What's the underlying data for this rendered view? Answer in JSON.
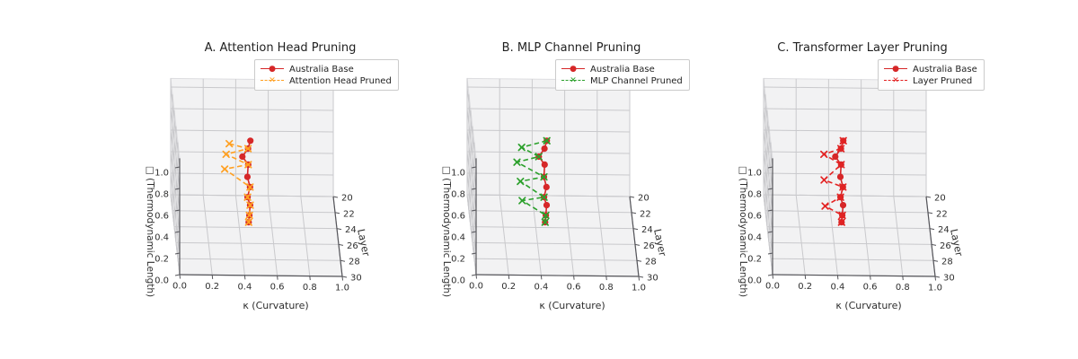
{
  "figure": {
    "background": "#ffffff",
    "pane_color": "#f2f2f3",
    "pane_edge_color": "#dddde0",
    "grid_color": "#c9c9cc",
    "axis_line_color": "#55555a",
    "tick_text_color": "#2e2e2e",
    "title_color": "#1f1f1f"
  },
  "chart_data": [
    {
      "type": "line3d",
      "title": "A. Attention Head Pruning",
      "xlabel": "κ (Curvature)",
      "ylabel": "Layer",
      "zlabel": "□ (Thermodynamic Length)",
      "xlim": [
        0,
        1
      ],
      "ylim": [
        20,
        30
      ],
      "zlim": [
        0,
        1.05
      ],
      "xticks": [
        "0.0",
        "0.2",
        "0.4",
        "0.6",
        "0.8",
        "1.0"
      ],
      "yticks": [
        "20",
        "22",
        "24",
        "26",
        "28",
        "30"
      ],
      "zticks": [
        "0.0",
        "0.2",
        "0.4",
        "0.6",
        "0.8",
        "1.0"
      ],
      "grid": true,
      "legend_position": "upper center-right",
      "series": [
        {
          "name": "Australia Base",
          "color": "#d62728",
          "marker": "circle",
          "line": "solid",
          "layers": [
            20,
            21,
            22,
            23,
            24,
            25,
            26,
            27,
            28,
            29
          ],
          "kappa": [
            0.49,
            0.47,
            0.43,
            0.46,
            0.45,
            0.46,
            0.44,
            0.45,
            0.44,
            0.43
          ],
          "thermo_length": [
            0.51,
            0.51,
            0.51,
            0.51,
            0.47,
            0.45,
            0.43,
            0.43,
            0.41,
            0.42
          ]
        },
        {
          "name": "Attention Head Pruned",
          "color": "#ffa022",
          "marker": "x",
          "line": "dashed",
          "layers": [
            20,
            21,
            22,
            23,
            24,
            25,
            26,
            27,
            28,
            29
          ],
          "kappa": [
            0.36,
            0.47,
            0.33,
            0.46,
            0.31,
            0.46,
            0.44,
            0.45,
            0.44,
            0.43
          ],
          "thermo_length": [
            0.48,
            0.51,
            0.53,
            0.51,
            0.54,
            0.45,
            0.43,
            0.43,
            0.41,
            0.42
          ]
        }
      ]
    },
    {
      "type": "line3d",
      "title": "B. MLP Channel Pruning",
      "xlabel": "κ (Curvature)",
      "ylabel": "Layer",
      "zlabel": "□ (Thermodynamic Length)",
      "xlim": [
        0,
        1
      ],
      "ylim": [
        20,
        30
      ],
      "zlim": [
        0,
        1.05
      ],
      "xticks": [
        "0.0",
        "0.2",
        "0.4",
        "0.6",
        "0.8",
        "1.0"
      ],
      "yticks": [
        "20",
        "22",
        "24",
        "26",
        "28",
        "30"
      ],
      "zticks": [
        "0.0",
        "0.2",
        "0.4",
        "0.6",
        "0.8",
        "1.0"
      ],
      "grid": true,
      "legend_position": "upper center-right",
      "series": [
        {
          "name": "Australia Base",
          "color": "#d62728",
          "marker": "circle",
          "line": "solid",
          "layers": [
            20,
            21,
            22,
            23,
            24,
            25,
            26,
            27,
            28,
            29
          ],
          "kappa": [
            0.49,
            0.47,
            0.43,
            0.46,
            0.45,
            0.46,
            0.44,
            0.45,
            0.44,
            0.43
          ],
          "thermo_length": [
            0.51,
            0.51,
            0.51,
            0.51,
            0.47,
            0.45,
            0.43,
            0.43,
            0.41,
            0.42
          ]
        },
        {
          "name": "MLP Channel Pruned",
          "color": "#2ca02c",
          "marker": "x",
          "line": "dashed",
          "layers": [
            20,
            21,
            22,
            23,
            24,
            25,
            26,
            27,
            28,
            29
          ],
          "kappa": [
            0.49,
            0.33,
            0.43,
            0.29,
            0.45,
            0.3,
            0.44,
            0.3,
            0.44,
            0.43
          ],
          "thermo_length": [
            0.51,
            0.52,
            0.51,
            0.53,
            0.47,
            0.5,
            0.43,
            0.47,
            0.41,
            0.42
          ]
        }
      ]
    },
    {
      "type": "line3d",
      "title": "C. Transformer Layer Pruning",
      "xlabel": "κ (Curvature)",
      "ylabel": "Layer",
      "zlabel": "□ (Thermodynamic Length)",
      "xlim": [
        0,
        1
      ],
      "ylim": [
        20,
        30
      ],
      "zlim": [
        0,
        1.05
      ],
      "xticks": [
        "0.0",
        "0.2",
        "0.4",
        "0.6",
        "0.8",
        "1.0"
      ],
      "yticks": [
        "20",
        "22",
        "24",
        "26",
        "28",
        "30"
      ],
      "zticks": [
        "0.0",
        "0.2",
        "0.4",
        "0.6",
        "0.8",
        "1.0"
      ],
      "grid": true,
      "legend_position": "upper center-right",
      "series": [
        {
          "name": "Australia Base",
          "color": "#d62728",
          "marker": "circle",
          "line": "solid",
          "layers": [
            20,
            21,
            22,
            23,
            24,
            25,
            26,
            27,
            28,
            29
          ],
          "kappa": [
            0.49,
            0.47,
            0.43,
            0.46,
            0.45,
            0.46,
            0.44,
            0.45,
            0.44,
            0.43
          ],
          "thermo_length": [
            0.51,
            0.51,
            0.51,
            0.51,
            0.47,
            0.45,
            0.43,
            0.43,
            0.41,
            0.42
          ]
        },
        {
          "name": "Layer Pruned",
          "color": "#e32222",
          "marker": "x",
          "line": "dashed",
          "layers": [
            20,
            21,
            22,
            23,
            24,
            25,
            26,
            27,
            28,
            29
          ],
          "kappa": [
            0.49,
            0.47,
            0.36,
            0.46,
            0.35,
            0.46,
            0.44,
            0.34,
            0.44,
            0.43
          ],
          "thermo_length": [
            0.51,
            0.51,
            0.53,
            0.51,
            0.44,
            0.45,
            0.43,
            0.42,
            0.41,
            0.42
          ]
        }
      ]
    }
  ]
}
